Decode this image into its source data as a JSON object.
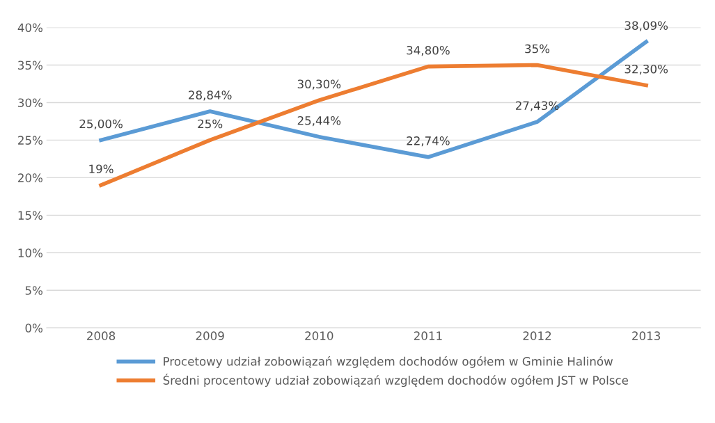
{
  "chart_data": {
    "type": "line",
    "categories": [
      "2008",
      "2009",
      "2010",
      "2011",
      "2012",
      "2013"
    ],
    "series": [
      {
        "name": "Procetowy udział zobowiązań względem dochodów ogółem w Gminie Halinów",
        "color": "#5b9bd5",
        "values": [
          25.0,
          28.84,
          25.44,
          22.74,
          27.43,
          38.09
        ],
        "value_labels": [
          "25,00%",
          "28,84%",
          "25,44%",
          "22,74%",
          "27,43%",
          "38,09%"
        ]
      },
      {
        "name": "Średni procentowy udział zobowiązań względem dochodów ogółem JST w Polsce",
        "color": "#ed7d31",
        "values": [
          19,
          25,
          30.3,
          34.8,
          35,
          32.3
        ],
        "value_labels": [
          "19%",
          "25%",
          "30,30%",
          "34,80%",
          "35%",
          "32,30%"
        ]
      }
    ],
    "ylim": [
      0,
      40
    ],
    "yticks": [
      {
        "value": 0,
        "label": "0%"
      },
      {
        "value": 5,
        "label": "5%"
      },
      {
        "value": 10,
        "label": "10%"
      },
      {
        "value": 15,
        "label": "15%"
      },
      {
        "value": 20,
        "label": "20%"
      },
      {
        "value": 25,
        "label": "25%"
      },
      {
        "value": 30,
        "label": "30%"
      },
      {
        "value": 35,
        "label": "35%"
      },
      {
        "value": 40,
        "label": "40%"
      }
    ],
    "grid": "y",
    "legend": "bottom",
    "marker": "none",
    "line_style": "solid"
  }
}
